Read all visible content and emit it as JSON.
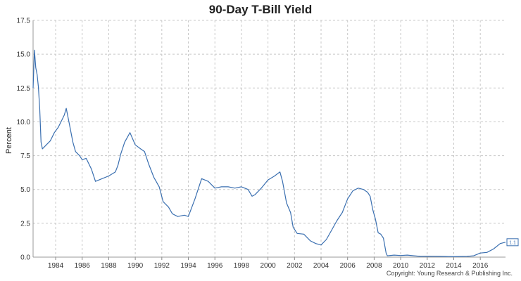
{
  "chart_data": {
    "type": "line",
    "title": "90-Day T-Bill Yield",
    "ylabel": "Percent",
    "xlabel": "",
    "xlim": [
      1982.3,
      2017.9
    ],
    "ylim": [
      0,
      17.5
    ],
    "y_ticks": [
      "0.0",
      "2.5",
      "5.0",
      "7.5",
      "10.0",
      "12.5",
      "15.0",
      "17.5"
    ],
    "x_ticks": [
      "1984",
      "1986",
      "1988",
      "1990",
      "1992",
      "1994",
      "1996",
      "1998",
      "2000",
      "2002",
      "2004",
      "2006",
      "2008",
      "2010",
      "2012",
      "2014",
      "2016"
    ],
    "grid": true,
    "line_color": "#3a6fb0",
    "end_label": "1.1",
    "copyright": "Copyright: Young Research & Publishing Inc.",
    "series": [
      {
        "x": [
          1982.3,
          1982.4,
          1982.5,
          1982.6,
          1982.7,
          1982.8,
          1982.9,
          1983.0,
          1983.3,
          1983.6,
          1983.9,
          1984.2,
          1984.5,
          1984.65,
          1984.8,
          1985.0,
          1985.3,
          1985.5,
          1985.8,
          1986.0,
          1986.3,
          1986.7,
          1987.0,
          1987.5,
          1988.0,
          1988.5,
          1988.7,
          1988.9,
          1989.2,
          1989.6,
          1990.0,
          1990.4,
          1990.7,
          1991.0,
          1991.4,
          1991.8,
          1992.1,
          1992.5,
          1992.8,
          1993.2,
          1993.7,
          1994.0,
          1994.5,
          1995.0,
          1995.5,
          1996.0,
          1996.5,
          1997.0,
          1997.5,
          1998.0,
          1998.5,
          1998.8,
          1999.0,
          1999.5,
          2000.0,
          2000.5,
          2000.9,
          2001.1,
          2001.4,
          2001.7,
          2001.9,
          2002.2,
          2002.7,
          2003.2,
          2003.6,
          2004.0,
          2004.4,
          2004.8,
          2005.2,
          2005.6,
          2006.0,
          2006.4,
          2006.8,
          2007.2,
          2007.5,
          2007.7,
          2007.9,
          2008.1,
          2008.3,
          2008.5,
          2008.7,
          2008.9,
          2009.0,
          2009.5,
          2010.0,
          2010.5,
          2011.0,
          2011.5,
          2012.0,
          2013.0,
          2014.0,
          2015.0,
          2015.5,
          2016.0,
          2016.5,
          2017.0,
          2017.5,
          2017.9
        ],
        "values": [
          12.5,
          15.3,
          14.0,
          13.5,
          12.6,
          11.0,
          8.5,
          8.0,
          8.3,
          8.6,
          9.2,
          9.6,
          10.2,
          10.5,
          11.0,
          10.0,
          8.5,
          7.8,
          7.5,
          7.2,
          7.3,
          6.5,
          5.6,
          5.8,
          6.0,
          6.3,
          6.8,
          7.6,
          8.5,
          9.2,
          8.3,
          8.0,
          7.8,
          6.9,
          5.9,
          5.2,
          4.1,
          3.7,
          3.2,
          3.0,
          3.1,
          3.0,
          4.3,
          5.8,
          5.6,
          5.1,
          5.2,
          5.2,
          5.1,
          5.2,
          5.0,
          4.5,
          4.6,
          5.1,
          5.7,
          6.0,
          6.3,
          5.6,
          4.0,
          3.3,
          2.2,
          1.75,
          1.7,
          1.2,
          1.0,
          0.9,
          1.3,
          2.0,
          2.7,
          3.3,
          4.3,
          4.9,
          5.1,
          5.0,
          4.8,
          4.5,
          3.5,
          2.8,
          1.8,
          1.7,
          1.4,
          0.3,
          0.1,
          0.15,
          0.12,
          0.15,
          0.1,
          0.05,
          0.06,
          0.05,
          0.03,
          0.05,
          0.1,
          0.3,
          0.35,
          0.6,
          1.0,
          1.1
        ]
      }
    ]
  }
}
